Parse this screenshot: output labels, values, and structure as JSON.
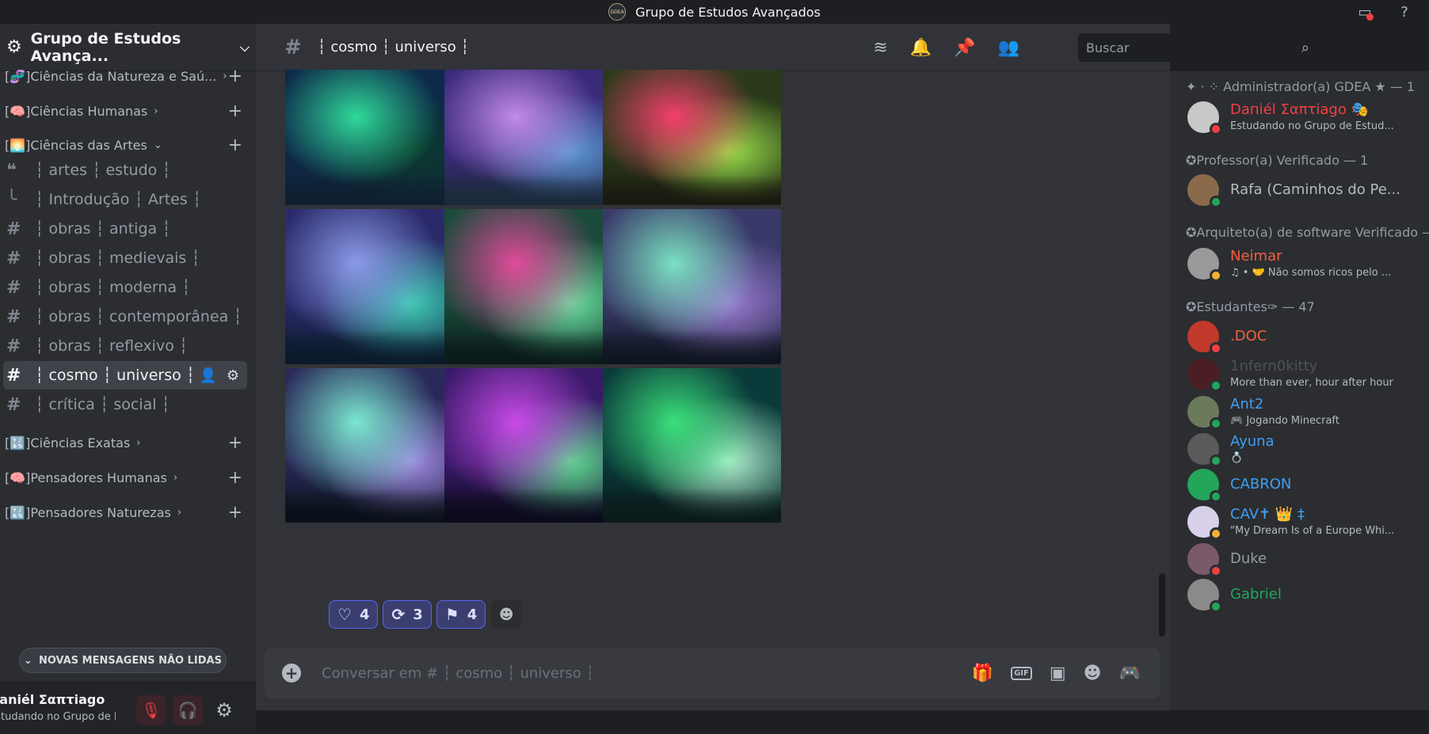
{
  "window": {
    "title": "Grupo de Estudos Avançados",
    "logo_text": "GDEA"
  },
  "server": {
    "name": "Grupo de Estudos Avança..."
  },
  "categories": [
    {
      "label": "[🧬]Ciências da Natureza e Saú...",
      "color": "#6a4fb3"
    },
    {
      "label": "[🧠]Ciências Humanas",
      "color": "#d94f8a"
    },
    {
      "label": "[🌅]Ciências das Artes",
      "color": "#e87a3a"
    },
    {
      "label": "[🔣]Ciências Exatas",
      "color": "#3a7ad9"
    },
    {
      "label": "[🧠]Pensadores Humanas",
      "color": "#d94f8a"
    },
    {
      "label": "[🔣]Pensadores Naturezas",
      "color": "#3a7ad9"
    }
  ],
  "channels": [
    {
      "label": "┆ artes ┆ estudo ┆",
      "icon": "forum-icon"
    },
    {
      "label": "┆ Introdução ┆ Artes ┆",
      "icon": "thread-icon"
    },
    {
      "label": "┆ obras ┆ antiga ┆",
      "icon": "hash-icon"
    },
    {
      "label": "┆ obras ┆ medievais ┆",
      "icon": "hash-icon"
    },
    {
      "label": "┆ obras ┆ moderna ┆",
      "icon": "hash-icon"
    },
    {
      "label": "┆ obras ┆ contemporânea ┆",
      "icon": "hash-icon"
    },
    {
      "label": "┆ obras ┆ reflexivo ┆",
      "icon": "hash-icon"
    },
    {
      "label": "┆ cosmo ┆ universo ┆",
      "icon": "hash-icon"
    },
    {
      "label": "┆ crítica ┆ social ┆",
      "icon": "hash-icon"
    }
  ],
  "sidebar": {
    "new_messages": "NOVAS MENSAGENS NÃO LIDAS"
  },
  "user": {
    "name": "Daniél Σαπτiago",
    "status": "Estudando no Grupo de Est..."
  },
  "channel_header": {
    "title": "┆ cosmo ┆ universo ┆"
  },
  "search": {
    "placeholder": "Buscar"
  },
  "reactions": [
    {
      "icon": "♡",
      "count": "4"
    },
    {
      "icon": "⟳",
      "count": "3"
    },
    {
      "icon": "⚑",
      "count": "4"
    }
  ],
  "composer": {
    "placeholder": "Conversar em # ┆ cosmo ┆ universo ┆"
  },
  "roles": [
    "✦ · ⁘ Administrador(a) GDEA ★ — 1",
    "✪Professor(a) Verificado — 1",
    "✪Arquiteto(a) de software Verificado —",
    "✪Estudantes✑ — 47"
  ],
  "members": [
    {
      "name": "Daпiél Σαπτiago 🎭",
      "sub": "Estudando no Grupo de Estud...",
      "color": "#f23f43",
      "status": "#f23f43",
      "avatar": "#c8c8c8"
    },
    {
      "name": "Rafa (Caminhos do Pe...",
      "sub": "",
      "color": "#b5bac1",
      "status": "#23a55a",
      "avatar": "#8a6a4a"
    },
    {
      "name": "Neimar",
      "sub": "♫ • 🤝 Não somos ricos pelo ...",
      "color": "#f2613f",
      "status": "#f0b232",
      "avatar": "#9a9a9a"
    },
    {
      "name": ".DOC",
      "sub": "",
      "color": "#f2613f",
      "status": "#f23f43",
      "avatar": "#c0392b"
    },
    {
      "name": "1nfern0kitty",
      "sub": "More than ever, hour after hour",
      "color": "#4e5058",
      "status": "#23a55a",
      "avatar": "#4a1e22"
    },
    {
      "name": "Ant2",
      "sub": "🎮 Jogando Minecraft",
      "color": "#3f9ef2",
      "status": "#23a55a",
      "avatar": "#6b7a5a"
    },
    {
      "name": "Ayuna",
      "sub": "💍",
      "color": "#3f9ef2",
      "status": "#23a55a",
      "avatar": "#5a5a5a"
    },
    {
      "name": "CABRON",
      "sub": "",
      "color": "#3f9ef2",
      "status": "#23a55a",
      "avatar": "#23a55a"
    },
    {
      "name": "CAV✝ 👑 ‡",
      "sub": "\"My Dream Is of a Europe Whi...",
      "color": "#3f9ef2",
      "status": "#f0b232",
      "avatar": "#d8d0e8"
    },
    {
      "name": "Duke",
      "sub": "",
      "color": "#949ba4",
      "status": "#f23f43",
      "avatar": "#7a5a6a"
    },
    {
      "name": "Gabriel",
      "sub": "",
      "color": "#23a55a",
      "status": "#23a55a",
      "avatar": "#8a8a8a"
    }
  ],
  "images": [
    {
      "name": "aurora-green-lake",
      "colors": [
        "#0d2a4a",
        "#2fd99a",
        "#0a3a2a",
        "#0f1f30"
      ]
    },
    {
      "name": "aurora-purple-pines",
      "colors": [
        "#3a2a7a",
        "#c28ae8",
        "#5a9ad0",
        "#1a2a3a"
      ]
    },
    {
      "name": "aurora-red-green-lake",
      "colors": [
        "#2a3a1a",
        "#f23f6a",
        "#9ae04a",
        "#1a1a10"
      ]
    },
    {
      "name": "aurora-mountain-lake",
      "colors": [
        "#2a2a6a",
        "#8a9ae8",
        "#3ad0b0",
        "#0a1a2a"
      ]
    },
    {
      "name": "aurora-pink-green",
      "colors": [
        "#1a4a3a",
        "#e04a9a",
        "#6ae0a0",
        "#0a1a1a"
      ]
    },
    {
      "name": "aurora-snow-forest",
      "colors": [
        "#3a3a6a",
        "#7ae0c0",
        "#9a7ad0",
        "#0f1520"
      ]
    },
    {
      "name": "aurora-teal-pines",
      "colors": [
        "#2a2a5a",
        "#7ae8d0",
        "#a08ae0",
        "#0a1018"
      ]
    },
    {
      "name": "aurora-magenta",
      "colors": [
        "#3a1a6a",
        "#c84ae8",
        "#5ae08a",
        "#0a0a1a"
      ]
    },
    {
      "name": "aurora-green-swirl",
      "colors": [
        "#0a3a3a",
        "#3ae07a",
        "#b0f0d0",
        "#0a1a1a"
      ]
    }
  ]
}
